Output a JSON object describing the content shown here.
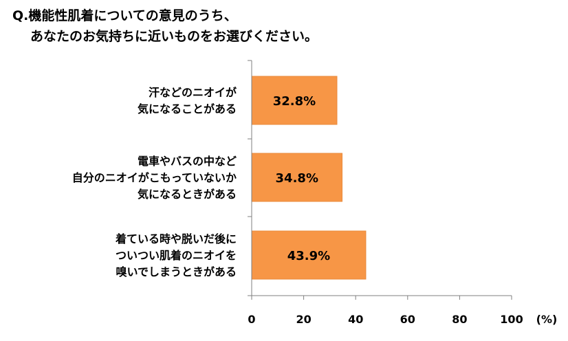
{
  "question": {
    "line1": "Q.機能性肌着についての意見のうち、",
    "line2": "あなたのお気持ちに近いものをお選びください。"
  },
  "chart_data": {
    "type": "bar",
    "orientation": "horizontal",
    "categories": [
      [
        "汗などのニオイが",
        "気になることがある"
      ],
      [
        "電車やバスの中など",
        "自分のニオイがこもっていないか",
        "気になるときがある"
      ],
      [
        "着ている時や脱いだ後に",
        "ついつい肌着のニオイを",
        "嗅いでしまうときがある"
      ]
    ],
    "values": [
      32.8,
      34.8,
      43.9
    ],
    "value_labels": [
      "32.8%",
      "34.8%",
      "43.9%"
    ],
    "xlim": [
      0,
      100
    ],
    "xticks": [
      "0",
      "20",
      "40",
      "60",
      "80",
      "100"
    ],
    "xunit": "(%)",
    "grid": false,
    "bar_color": "#F79646",
    "bar_edge_color": "#E8893A"
  }
}
